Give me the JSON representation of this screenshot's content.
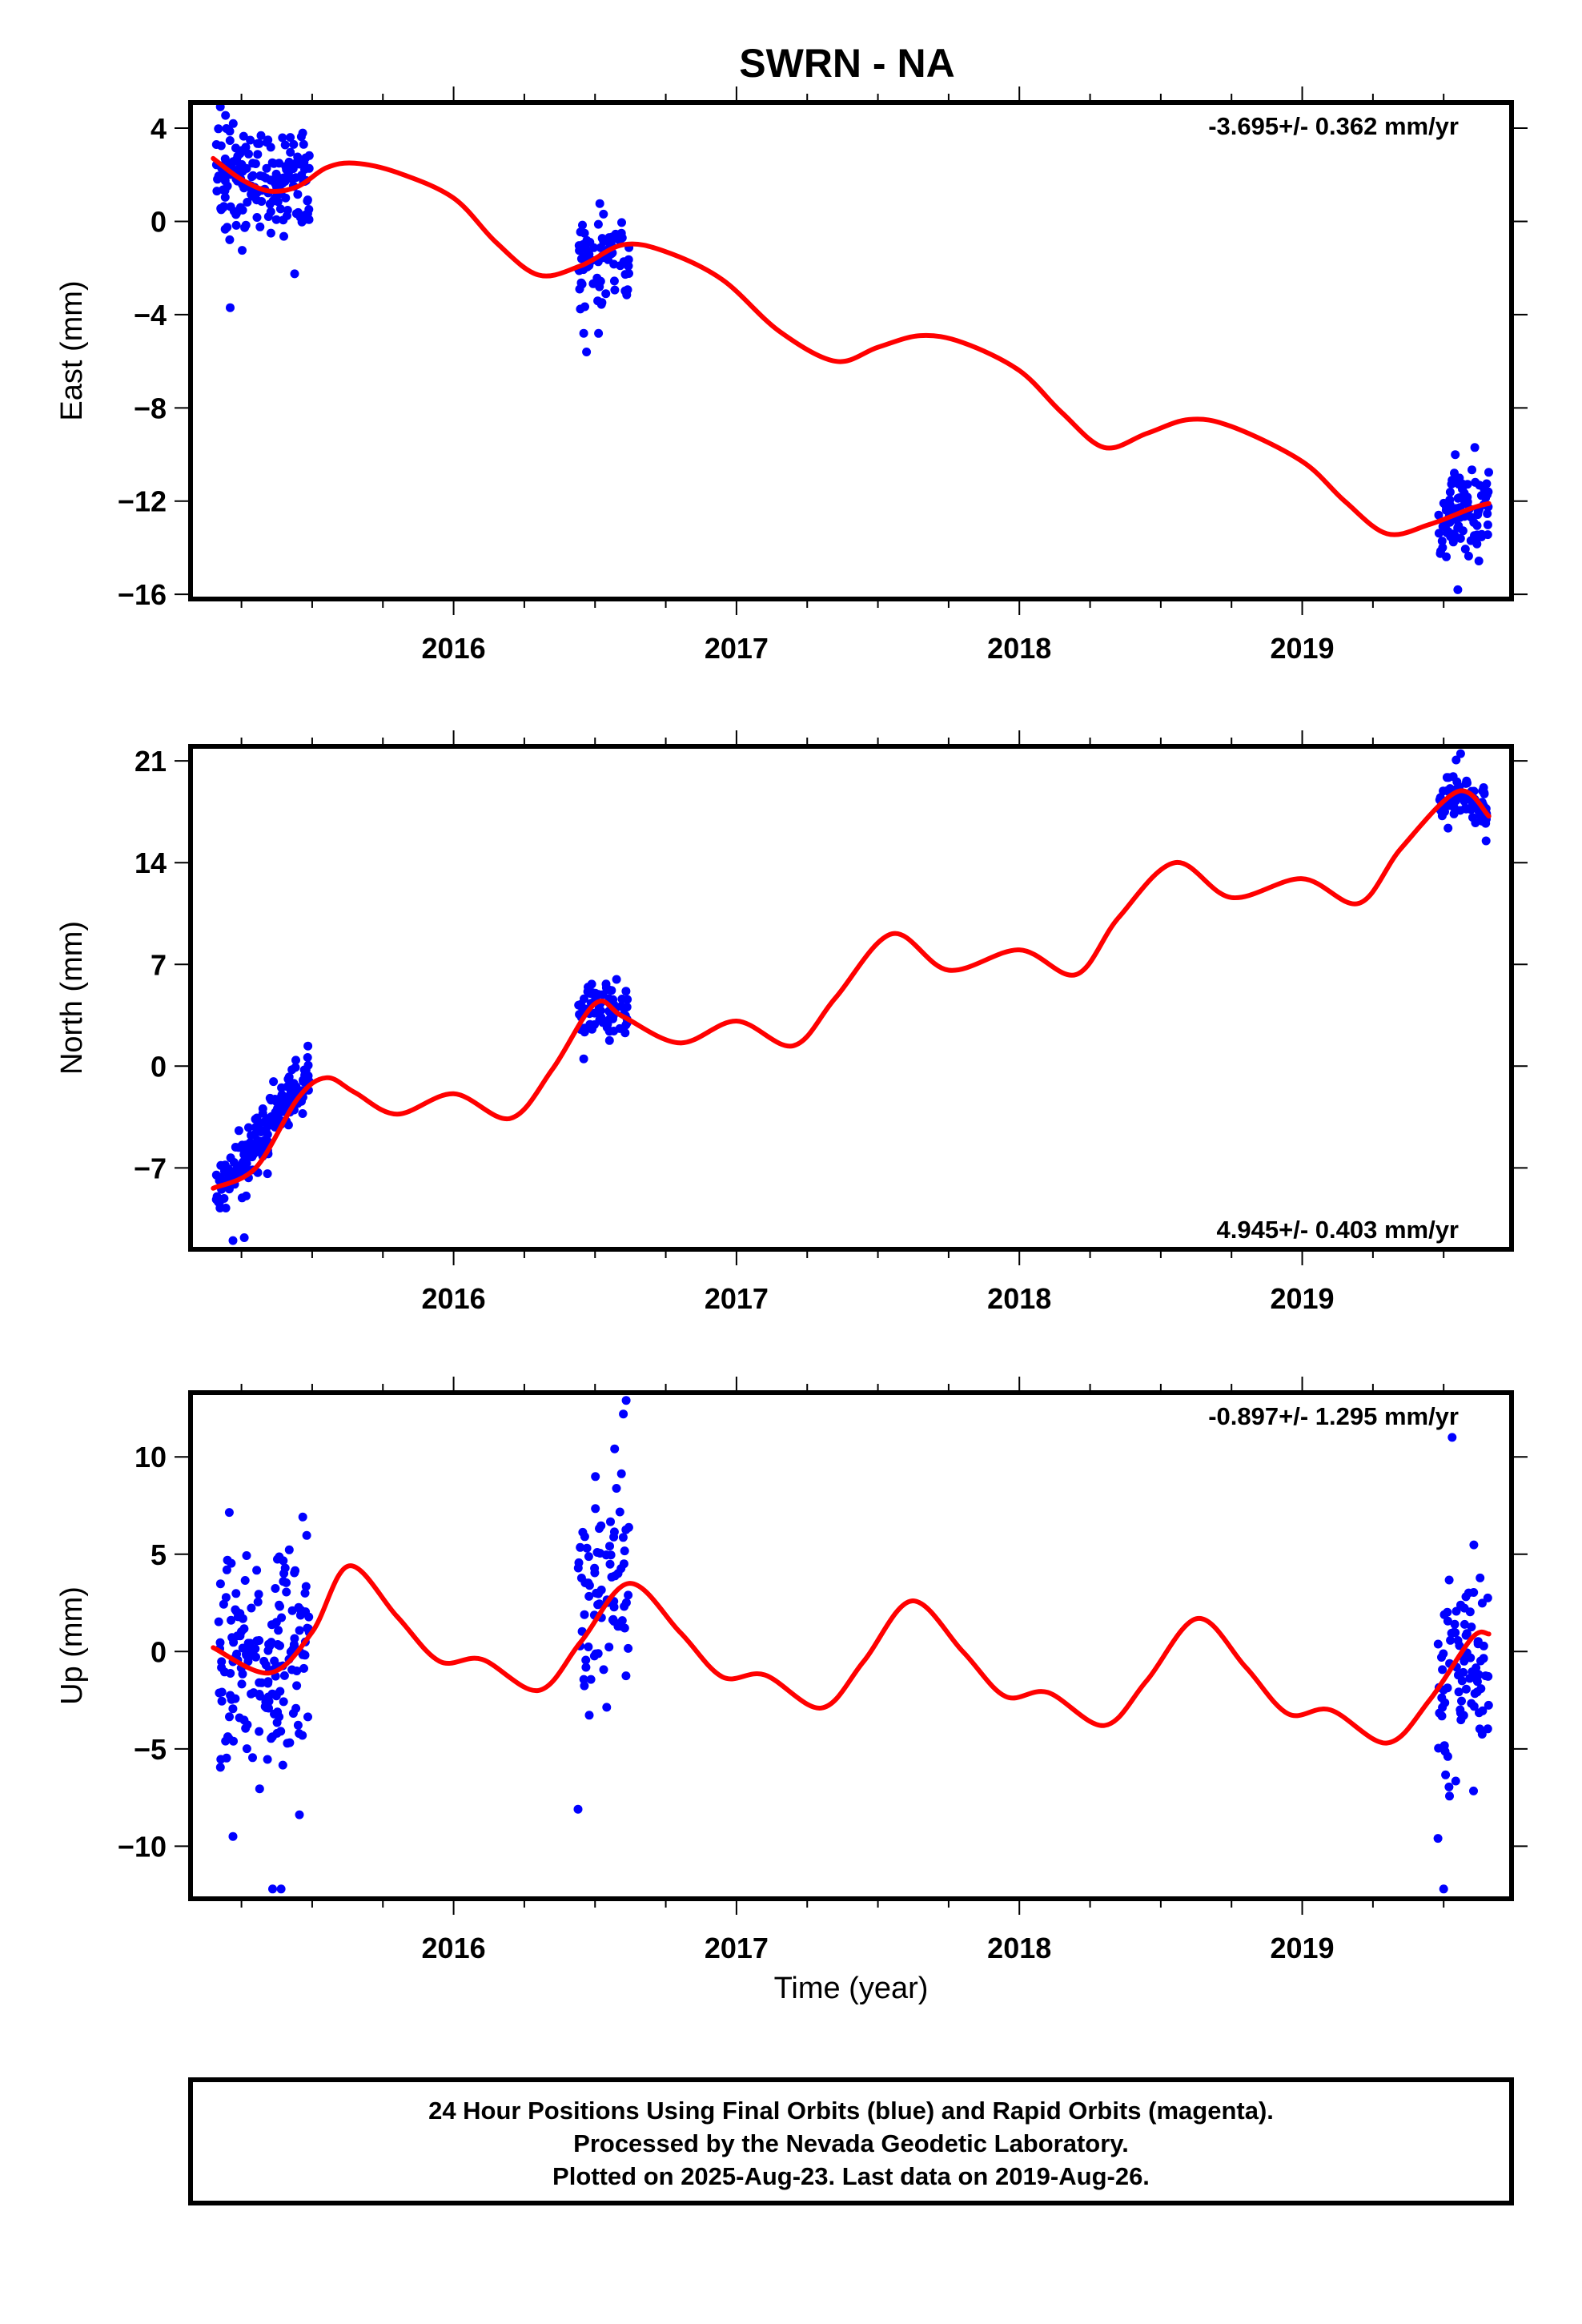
{
  "title": "SWRN - NA",
  "footer": {
    "lines": [
      "24 Hour Positions Using Final Orbits (blue) and Rapid Orbits (magenta).",
      "Processed by the Nevada Geodetic Laboratory.",
      "Plotted on 2025-Aug-23. Last data on 2019-Aug-26."
    ]
  },
  "colors": {
    "points": "#0000ff",
    "model": "#ff0000",
    "frame": "#000000"
  },
  "chart_data": [
    {
      "type": "scatter",
      "component": "east",
      "ylabel": "East (mm)",
      "xlabel": "",
      "rate_text": "-3.695+/- 0.362 mm/yr",
      "rate_position": "top-right",
      "xlim": [
        2015.07,
        2019.74
      ],
      "ylim": [
        -16.2,
        5.1
      ],
      "xticks": [
        2016,
        2017,
        2018,
        2019
      ],
      "xtick_labels": [
        "2016",
        "2017",
        "2018",
        "2019"
      ],
      "yticks": [
        4,
        0,
        -4,
        -8,
        -12,
        -16
      ],
      "ytick_labels": [
        "4",
        "0",
        "−4",
        "−8",
        "−12",
        "−16"
      ],
      "grid": false,
      "data_windows": [
        {
          "x_start": 2015.16,
          "x_end": 2015.49,
          "y_center": 1.9,
          "y_spread": 1.5,
          "n": 180,
          "outliers": [
            [
              2015.21,
              -3.7
            ]
          ]
        },
        {
          "x_start": 2016.44,
          "x_end": 2016.62,
          "y_center": -1.5,
          "y_spread": 1.3,
          "n": 80,
          "outliers": [
            [
              2016.47,
              -5.6
            ],
            [
              2016.46,
              -4.8
            ]
          ]
        },
        {
          "x_start": 2019.48,
          "x_end": 2019.66,
          "y_center": -12.8,
          "y_spread": 1.2,
          "n": 90,
          "outliers": [
            [
              2019.61,
              -9.7
            ],
            [
              2019.55,
              -15.8
            ]
          ]
        }
      ],
      "model_curve": {
        "x": [
          2015.15,
          2015.25,
          2015.35,
          2015.45,
          2015.55,
          2015.65,
          2015.8,
          2016.0,
          2016.15,
          2016.3,
          2016.45,
          2016.6,
          2016.75,
          2016.95,
          2017.15,
          2017.35,
          2017.5,
          2017.65,
          2017.8,
          2018.0,
          2018.15,
          2018.3,
          2018.45,
          2018.6,
          2018.75,
          2019.0,
          2019.15,
          2019.3,
          2019.45,
          2019.6,
          2019.66
        ],
        "y": [
          2.7,
          1.8,
          1.3,
          1.5,
          2.3,
          2.5,
          2.1,
          1.0,
          -0.9,
          -2.3,
          -1.9,
          -1.0,
          -1.3,
          -2.5,
          -4.7,
          -6.0,
          -5.4,
          -4.9,
          -5.2,
          -6.4,
          -8.2,
          -9.7,
          -9.1,
          -8.5,
          -8.8,
          -10.3,
          -12.0,
          -13.4,
          -13.0,
          -12.3,
          -12.1
        ]
      }
    },
    {
      "type": "scatter",
      "component": "north",
      "ylabel": "North (mm)",
      "xlabel": "",
      "rate_text": "4.945+/- 0.403 mm/yr",
      "rate_position": "bottom-right",
      "xlim": [
        2015.07,
        2019.74
      ],
      "ylim": [
        -12.6,
        22.0
      ],
      "xticks": [
        2016,
        2017,
        2018,
        2019
      ],
      "xtick_labels": [
        "2016",
        "2017",
        "2018",
        "2019"
      ],
      "yticks": [
        21,
        14,
        7,
        0,
        -7
      ],
      "ytick_labels": [
        "21",
        "14",
        "7",
        "0",
        "−7"
      ],
      "grid": false,
      "data_windows": [
        {
          "x_start": 2015.16,
          "x_end": 2015.49,
          "y_center": -5.5,
          "y_spread": 1.4,
          "trend": [
            -8.6,
            -0.7
          ],
          "n": 180,
          "outliers": [
            [
              2015.22,
              -12.0
            ],
            [
              2015.26,
              -11.8
            ]
          ]
        },
        {
          "x_start": 2016.44,
          "x_end": 2016.62,
          "y_center": 4.0,
          "y_spread": 1.3,
          "n": 80,
          "outliers": [
            [
              2016.46,
              0.5
            ]
          ]
        },
        {
          "x_start": 2019.48,
          "x_end": 2019.66,
          "y_center": 18.5,
          "y_spread": 1.2,
          "n": 90,
          "outliers": [
            [
              2019.56,
              21.5
            ],
            [
              2019.65,
              15.5
            ]
          ]
        }
      ],
      "model_curve": {
        "x": [
          2015.15,
          2015.3,
          2015.45,
          2015.55,
          2015.65,
          2015.8,
          2016.0,
          2016.2,
          2016.35,
          2016.5,
          2016.6,
          2016.8,
          2017.0,
          2017.2,
          2017.35,
          2017.55,
          2017.75,
          2018.0,
          2018.2,
          2018.35,
          2018.55,
          2018.75,
          2019.0,
          2019.2,
          2019.35,
          2019.55,
          2019.66
        ],
        "y": [
          -8.4,
          -7.0,
          -2.2,
          -0.8,
          -1.8,
          -3.3,
          -1.9,
          -3.6,
          -0.2,
          4.3,
          3.4,
          1.6,
          3.1,
          1.4,
          4.7,
          9.1,
          6.6,
          8.0,
          6.3,
          10.2,
          14.0,
          11.6,
          12.9,
          11.2,
          15.0,
          18.9,
          17.2
        ]
      }
    },
    {
      "type": "scatter",
      "component": "up",
      "ylabel": "Up (mm)",
      "xlabel": "Time (year)",
      "rate_text": "-0.897+/- 1.295 mm/yr",
      "rate_position": "top-right",
      "xlim": [
        2015.07,
        2019.74
      ],
      "ylim": [
        -12.7,
        13.3
      ],
      "xticks": [
        2016,
        2017,
        2018,
        2019
      ],
      "xtick_labels": [
        "2016",
        "2017",
        "2018",
        "2019"
      ],
      "yticks": [
        10,
        5,
        0,
        -5,
        -10
      ],
      "ytick_labels": [
        "10",
        "5",
        "0",
        "−5",
        "−10"
      ],
      "grid": false,
      "data_windows": [
        {
          "x_start": 2015.16,
          "x_end": 2015.49,
          "y_center": 0.0,
          "y_spread": 4.0,
          "n": 180,
          "outliers": [
            [
              2015.39,
              -12.2
            ],
            [
              2015.36,
              -12.2
            ],
            [
              2015.22,
              -9.5
            ]
          ]
        },
        {
          "x_start": 2016.44,
          "x_end": 2016.62,
          "y_center": 4.0,
          "y_spread": 3.6,
          "n": 80,
          "outliers": [
            [
              2016.44,
              -8.1
            ],
            [
              2016.61,
              12.9
            ],
            [
              2016.6,
              12.2
            ]
          ]
        },
        {
          "x_start": 2019.48,
          "x_end": 2019.66,
          "y_center": -1.5,
          "y_spread": 3.3,
          "n": 90,
          "outliers": [
            [
              2019.53,
              11.0
            ],
            [
              2019.5,
              -12.2
            ],
            [
              2019.48,
              -9.6
            ]
          ]
        }
      ],
      "model_curve": {
        "x": [
          2015.15,
          2015.35,
          2015.5,
          2015.63,
          2015.8,
          2015.95,
          2016.1,
          2016.3,
          2016.45,
          2016.62,
          2016.8,
          2016.95,
          2017.1,
          2017.3,
          2017.45,
          2017.62,
          2017.8,
          2017.95,
          2018.1,
          2018.3,
          2018.45,
          2018.63,
          2018.8,
          2018.95,
          2019.1,
          2019.3,
          2019.45,
          2019.6,
          2019.66
        ],
        "y": [
          0.2,
          -1.1,
          1.0,
          4.4,
          1.8,
          -0.5,
          -0.4,
          -2.0,
          0.5,
          3.5,
          1.0,
          -1.3,
          -1.2,
          -2.9,
          -0.5,
          2.6,
          0.0,
          -2.3,
          -2.1,
          -3.8,
          -1.5,
          1.7,
          -0.8,
          -3.2,
          -3.0,
          -4.7,
          -2.5,
          0.7,
          0.9
        ]
      }
    }
  ]
}
